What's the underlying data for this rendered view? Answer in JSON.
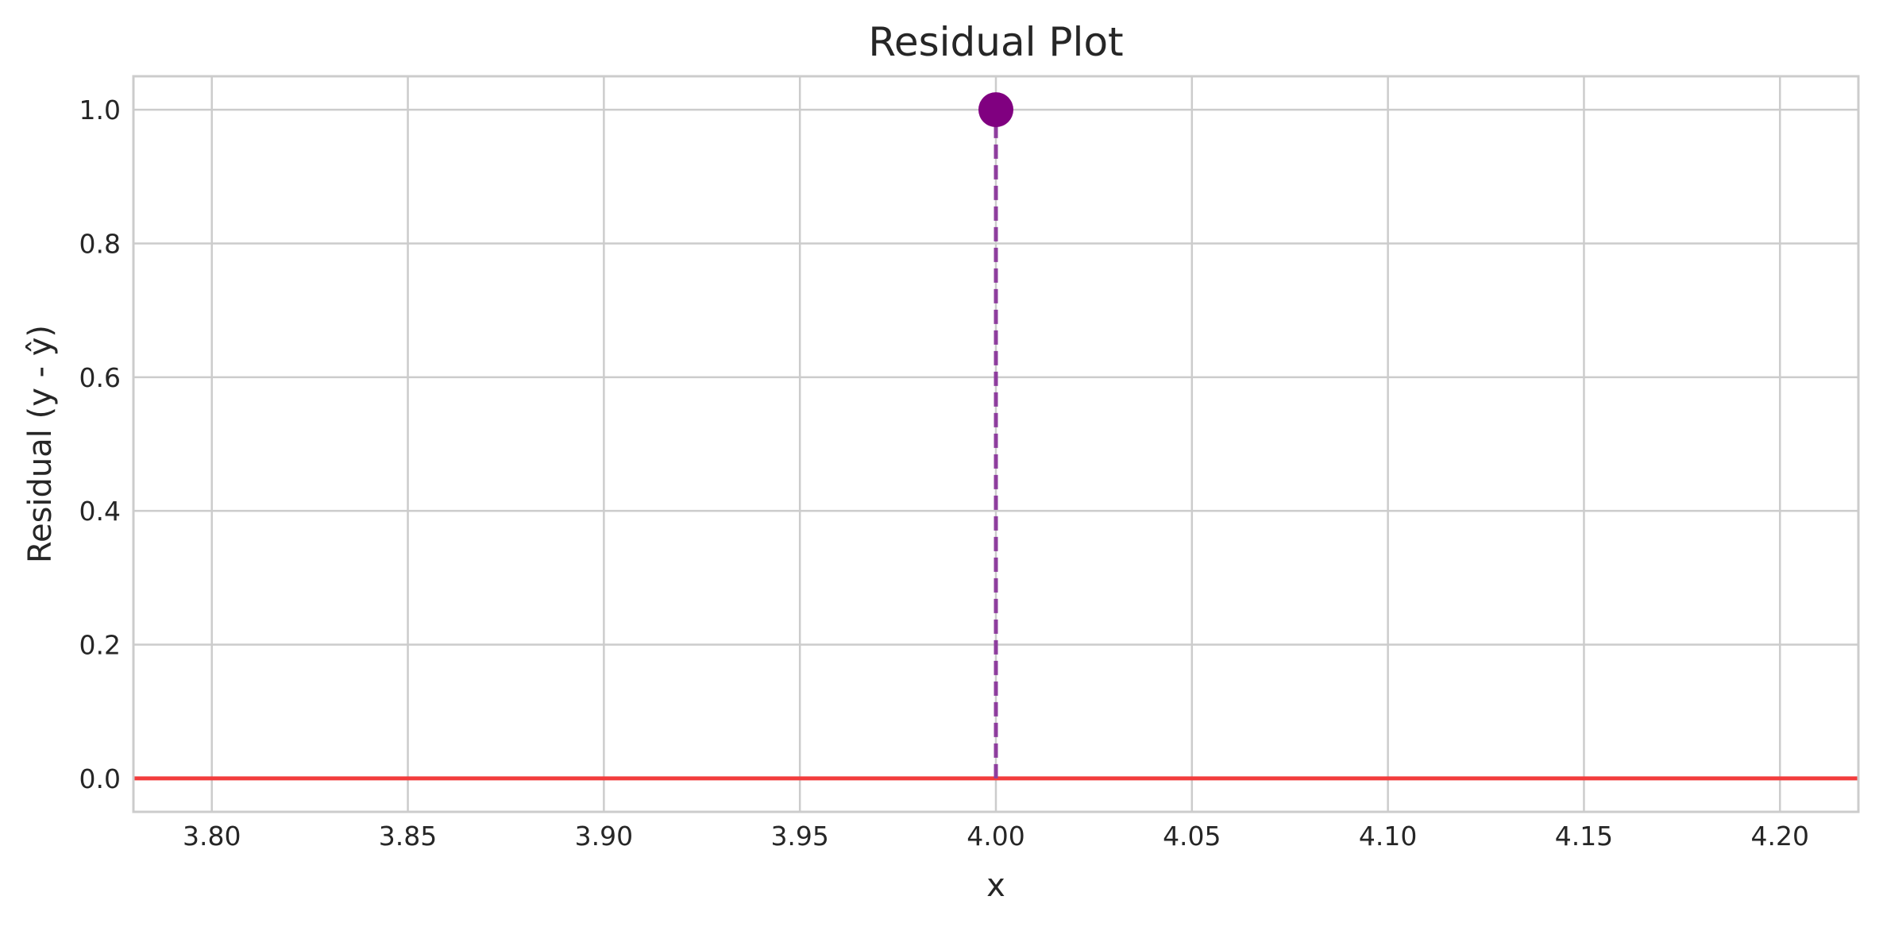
{
  "chart_data": {
    "type": "scatter",
    "title": "Residual Plot",
    "xlabel": "x",
    "ylabel": "Residual (y - ŷ)",
    "xlim": [
      3.78,
      4.22
    ],
    "ylim": [
      -0.05,
      1.05
    ],
    "x_ticks": [
      3.8,
      3.85,
      3.9,
      3.95,
      4.0,
      4.05,
      4.1,
      4.15,
      4.2
    ],
    "x_tick_labels": [
      "3.80",
      "3.85",
      "3.90",
      "3.95",
      "4.00",
      "4.05",
      "4.10",
      "4.15",
      "4.20"
    ],
    "y_ticks": [
      0.0,
      0.2,
      0.4,
      0.6,
      0.8,
      1.0
    ],
    "y_tick_labels": [
      "0.0",
      "0.2",
      "0.4",
      "0.6",
      "0.8",
      "1.0"
    ],
    "grid": true,
    "points": [
      {
        "x": 4.0,
        "y": 1.0
      }
    ],
    "zero_line": {
      "y": 0.0,
      "color": "#f23c3c"
    },
    "point_color": "#800080",
    "stem_color": "#8e3e9e",
    "stem_style": "dashed"
  }
}
